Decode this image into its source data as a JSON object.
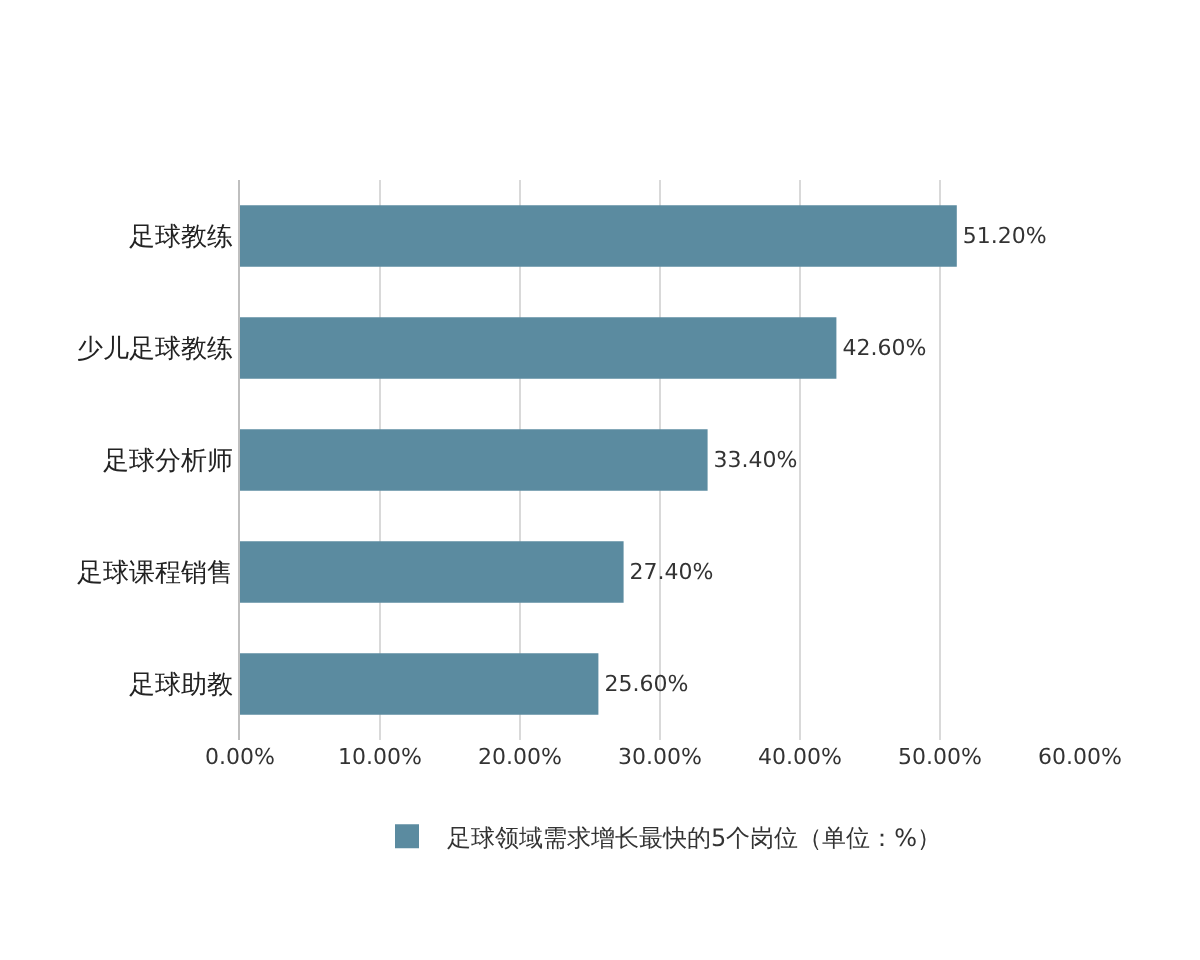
{
  "chart_data": {
    "type": "bar",
    "orientation": "horizontal",
    "categories": [
      "足球教练",
      "少儿足球教练",
      "足球分析师",
      "足球课程销售",
      "足球助教"
    ],
    "series": [
      {
        "name": "足球领域需求增长最快的5个岗位（单位：%）",
        "color": "#5b8ba0",
        "values": [
          51.2,
          42.6,
          33.4,
          27.4,
          25.6
        ],
        "value_labels": [
          "51.20%",
          "42.60%",
          "33.40%",
          "27.40%",
          "25.60%"
        ]
      }
    ],
    "xlim": [
      0,
      60
    ],
    "xticks": [
      {
        "value": 0,
        "label": "0.00%"
      },
      {
        "value": 10,
        "label": "10.00%"
      },
      {
        "value": 20,
        "label": "20.00%"
      },
      {
        "value": 30,
        "label": "30.00%"
      },
      {
        "value": 40,
        "label": "40.00%"
      },
      {
        "value": 50,
        "label": "50.00%"
      },
      {
        "value": 60,
        "label": "60.00%"
      }
    ],
    "grid": "x",
    "legend": "bottom"
  }
}
